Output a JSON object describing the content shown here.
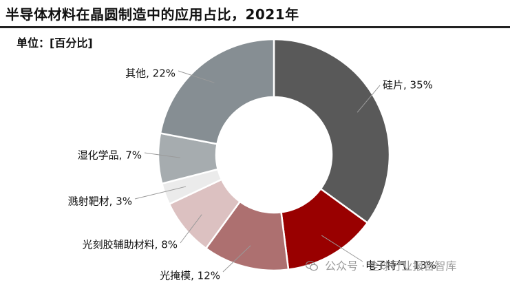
{
  "title": "半导体材料在晶圆制造中的应用占比，2021年",
  "unit_label": "单位：[百分比]",
  "watermark": {
    "icon": "wechat-icon",
    "text": "公众号 · 全球行业报告智库"
  },
  "chart_data": {
    "type": "donut",
    "title": "半导体材料在晶圆制造中的应用占比，2021年",
    "unit": "百分比",
    "year": "2021",
    "slices": [
      {
        "label": "硅片",
        "value": 35,
        "color": "#595959"
      },
      {
        "label": "电子特气",
        "value": 13,
        "color": "#990000"
      },
      {
        "label": "光掩模",
        "value": 12,
        "color": "#ad7070"
      },
      {
        "label": "光刻胶辅助材料",
        "value": 8,
        "color": "#dcc1c1"
      },
      {
        "label": "溅射靶材",
        "value": 3,
        "color": "#ebebeb"
      },
      {
        "label": "湿化学品",
        "value": 7,
        "color": "#a6acaf"
      },
      {
        "label": "其他",
        "value": 22,
        "color": "#868e93"
      }
    ],
    "start": "12 o'clock, clockwise",
    "legend": "none (leader-line labels)"
  }
}
